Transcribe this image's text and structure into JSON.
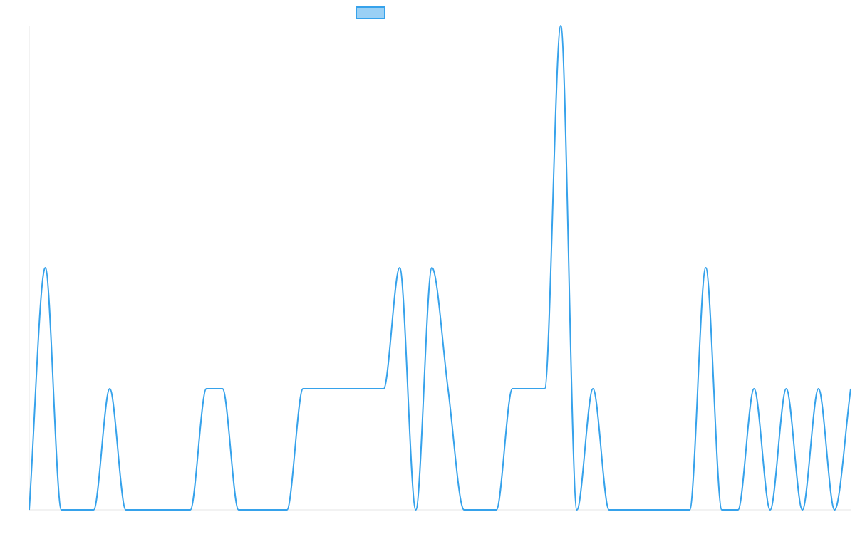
{
  "chart_data": {
    "type": "line",
    "title": "",
    "xlabel": "",
    "ylabel": "",
    "legend": {
      "position": "top-center",
      "entries": [
        ""
      ]
    },
    "grid": false,
    "x": [
      0,
      1,
      2,
      3,
      4,
      5,
      6,
      7,
      8,
      9,
      10,
      11,
      12,
      13,
      14,
      15,
      16,
      17,
      18,
      19,
      20,
      21,
      22,
      23,
      24,
      25,
      26,
      27,
      28,
      29,
      30,
      31,
      32,
      33,
      34,
      35,
      36,
      37,
      38,
      39,
      40,
      41,
      42,
      43,
      44,
      45,
      46,
      47,
      48,
      49,
      50,
      51
    ],
    "xlim": [
      0,
      51
    ],
    "ylim": [
      0,
      4
    ],
    "series": [
      {
        "name": "",
        "color": "#36a2eb",
        "fill": "#9ad0f5",
        "values": [
          0,
          2,
          0,
          0,
          0,
          1,
          0,
          0,
          0,
          0,
          0,
          1,
          1,
          0,
          0,
          0,
          0,
          1,
          1,
          1,
          1,
          1,
          1,
          2,
          0,
          2,
          1,
          0,
          0,
          0,
          1,
          1,
          1,
          4,
          0,
          1,
          0,
          0,
          0,
          0,
          0,
          0,
          2,
          0,
          0,
          1,
          0,
          1,
          0,
          1,
          0,
          1
        ]
      }
    ]
  }
}
